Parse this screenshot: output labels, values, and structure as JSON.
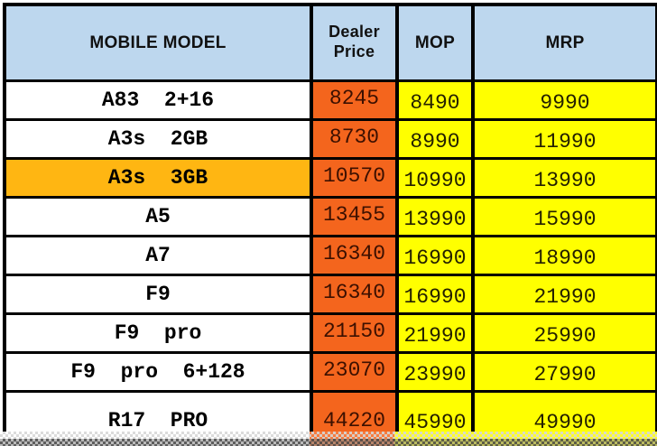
{
  "header": {
    "model": "MOBILE MODEL",
    "dealer": "Dealer Price",
    "mop": "MOP",
    "mrp": "MRP"
  },
  "rows": [
    {
      "model": "A83  2+16",
      "dealer": "8245",
      "mop": "8490",
      "mrp": "9990",
      "highlight": false,
      "cut": false
    },
    {
      "model": "A3s  2GB",
      "dealer": "8730",
      "mop": "8990",
      "mrp": "11990",
      "highlight": false,
      "cut": false
    },
    {
      "model": "A3s  3GB",
      "dealer": "10570",
      "mop": "10990",
      "mrp": "13990",
      "highlight": true,
      "cut": false
    },
    {
      "model": "A5",
      "dealer": "13455",
      "mop": "13990",
      "mrp": "15990",
      "highlight": false,
      "cut": false
    },
    {
      "model": "A7",
      "dealer": "16340",
      "mop": "16990",
      "mrp": "18990",
      "highlight": false,
      "cut": false
    },
    {
      "model": "F9",
      "dealer": "16340",
      "mop": "16990",
      "mrp": "21990",
      "highlight": false,
      "cut": false
    },
    {
      "model": "F9  pro",
      "dealer": "21150",
      "mop": "21990",
      "mrp": "25990",
      "highlight": false,
      "cut": false
    },
    {
      "model": "F9  pro  6+128",
      "dealer": "23070",
      "mop": "23990",
      "mrp": "27990",
      "highlight": false,
      "cut": false
    },
    {
      "model": "R17  PRO",
      "dealer": "44220",
      "mop": "45990",
      "mrp": "49990",
      "highlight": false,
      "cut": true
    }
  ],
  "colors": {
    "header_bg": "#bdd7ee",
    "dealer_bg": "#f4651d",
    "price_bg": "#ffff00",
    "highlight_bg": "#ffb612",
    "border": "#000000",
    "model_text": "#000000",
    "dealer_text": "#3c1000",
    "price_text": "#242000"
  }
}
